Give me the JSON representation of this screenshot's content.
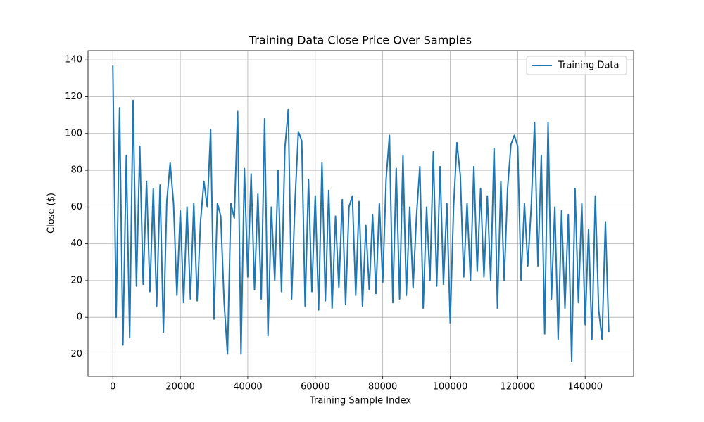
{
  "chart_data": {
    "type": "line",
    "title": "Training Data Close Price Over Samples",
    "xlabel": "Training Sample Index",
    "ylabel": "Close ($)",
    "x": [
      0,
      1000,
      2000,
      3000,
      4000,
      5000,
      6000,
      7000,
      8000,
      9000,
      10000,
      11000,
      12000,
      13000,
      14000,
      15000,
      16000,
      17000,
      18000,
      19000,
      20000,
      21000,
      22000,
      23000,
      24000,
      25000,
      26000,
      27000,
      28000,
      29000,
      30000,
      31000,
      32000,
      33000,
      34000,
      35000,
      36000,
      37000,
      38000,
      39000,
      40000,
      41000,
      42000,
      43000,
      44000,
      45000,
      46000,
      47000,
      48000,
      49000,
      50000,
      51000,
      52000,
      53000,
      54000,
      55000,
      56000,
      57000,
      58000,
      59000,
      60000,
      61000,
      62000,
      63000,
      64000,
      65000,
      66000,
      67000,
      68000,
      69000,
      70000,
      71000,
      72000,
      73000,
      74000,
      75000,
      76000,
      77000,
      78000,
      79000,
      80000,
      81000,
      82000,
      83000,
      84000,
      85000,
      86000,
      87000,
      88000,
      89000,
      90000,
      91000,
      92000,
      93000,
      94000,
      95000,
      96000,
      97000,
      98000,
      99000,
      100000,
      101000,
      102000,
      103000,
      104000,
      105000,
      106000,
      107000,
      108000,
      109000,
      110000,
      111000,
      112000,
      113000,
      114000,
      115000,
      116000,
      117000,
      118000,
      119000,
      120000,
      121000,
      122000,
      123000,
      124000,
      125000,
      126000,
      127000,
      128000,
      129000,
      130000,
      131000,
      132000,
      133000,
      134000,
      135000,
      136000,
      137000,
      138000,
      139000,
      140000,
      141000,
      142000,
      143000,
      144000,
      145000,
      146000,
      147000
    ],
    "series": [
      {
        "name": "Training Data",
        "color": "#1f77b4",
        "values": [
          137,
          0,
          114,
          -15,
          88,
          -11,
          118,
          17,
          93,
          18,
          74,
          14,
          70,
          6,
          72,
          -8,
          63,
          84,
          62,
          12,
          58,
          8,
          60,
          10,
          62,
          9,
          52,
          74,
          60,
          102,
          -1,
          62,
          55,
          8,
          -20,
          62,
          54,
          112,
          -20,
          81,
          22,
          78,
          15,
          67,
          10,
          108,
          -10,
          60,
          20,
          80,
          14,
          92,
          113,
          10,
          63,
          101,
          96,
          6,
          75,
          14,
          66,
          4,
          84,
          9,
          69,
          5,
          55,
          16,
          64,
          7,
          60,
          66,
          12,
          63,
          6,
          50,
          15,
          56,
          13,
          62,
          19,
          75,
          99,
          8,
          81,
          10,
          88,
          12,
          60,
          16,
          55,
          82,
          5,
          60,
          20,
          90,
          17,
          82,
          18,
          62,
          -3,
          60,
          95,
          77,
          22,
          62,
          20,
          82,
          25,
          70,
          22,
          66,
          20,
          92,
          5,
          74,
          20,
          70,
          94,
          99,
          93,
          20,
          62,
          28,
          60,
          106,
          28,
          88,
          -9,
          106,
          10,
          60,
          -12,
          58,
          5,
          56,
          -24,
          70,
          8,
          62,
          -4,
          48,
          -12,
          66,
          4,
          -12,
          52,
          -8
        ]
      }
    ],
    "xlim": [
      -7350,
      154350
    ],
    "ylim": [
      -32.05,
      145.05
    ],
    "xticks": [
      0,
      20000,
      40000,
      60000,
      80000,
      100000,
      120000,
      140000
    ],
    "yticks": [
      -20,
      0,
      20,
      40,
      60,
      80,
      100,
      120,
      140
    ],
    "grid": true,
    "legend": "upper right"
  }
}
